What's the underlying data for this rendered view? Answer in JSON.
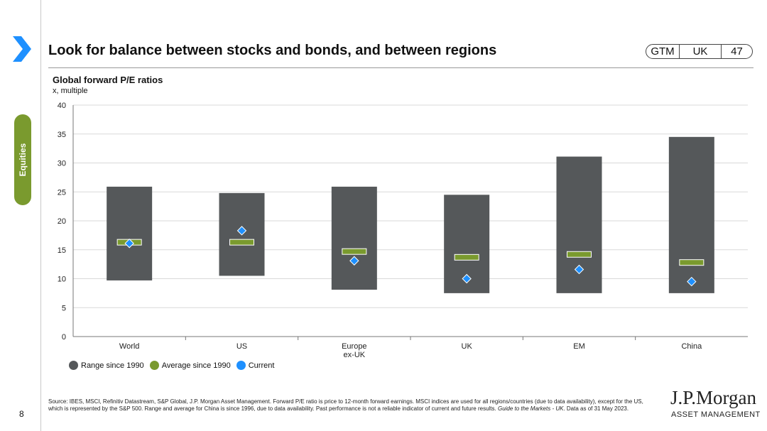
{
  "header": {
    "title": "Look for balance between stocks and bonds, and between regions",
    "badge": [
      "GTM",
      "UK",
      "47"
    ]
  },
  "section_tab": "Equities",
  "page_number": "8",
  "chart_data": {
    "type": "bar",
    "title": "Global forward P/E ratios",
    "subtitle": "x, multiple",
    "categories": [
      "World",
      "US",
      "Europe\nex-UK",
      "UK",
      "EM",
      "China"
    ],
    "ylim": [
      0,
      40
    ],
    "yticks": [
      0,
      5,
      10,
      15,
      20,
      25,
      30,
      35,
      40
    ],
    "grid": true,
    "series": [
      {
        "name": "Range since 1990",
        "low": [
          9.7,
          10.5,
          8.1,
          7.5,
          7.5,
          7.5
        ],
        "high": [
          25.9,
          24.8,
          25.9,
          24.5,
          31.1,
          34.5
        ],
        "color": "#55585a"
      },
      {
        "name": "Average since 1990",
        "values": [
          16.3,
          16.3,
          14.7,
          13.7,
          14.2,
          12.8
        ],
        "color": "#7a9a2e"
      },
      {
        "name": "Current",
        "values": [
          16.1,
          18.3,
          13.1,
          10.0,
          11.6,
          9.5
        ],
        "color": "#1e90ff"
      }
    ],
    "legend_position": "bottom-left"
  },
  "footer": {
    "source": "Source: IBES, MSCI, Refinitiv Datastream, S&P Global, J.P. Morgan Asset Management. Forward P/E ratio is price to 12-month forward earnings. MSCI indices are used for all regions/countries (due to data availability), except for the US, which is represented by the S&P 500. Range and average for China is since 1996, due to data availability. Past performance is not a reliable indicator of current and future results. ",
    "guide": "Guide to the Markets - UK",
    "date": ". Data as of 31 May 2023."
  },
  "logo": {
    "name": "J.P.Morgan",
    "sub": "ASSET MANAGEMENT"
  }
}
